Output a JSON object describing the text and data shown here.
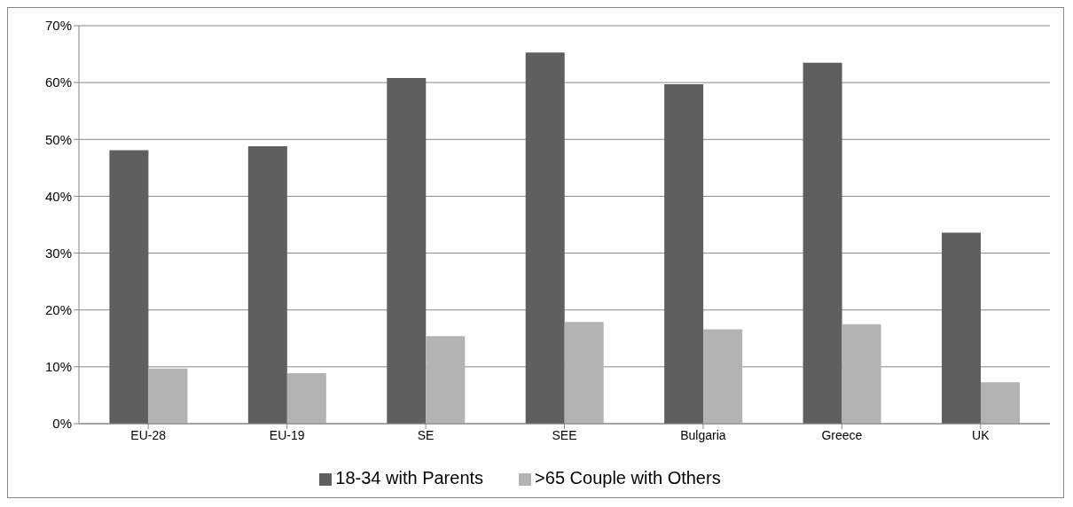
{
  "chart_data": {
    "type": "bar",
    "categories": [
      "EU-28",
      "EU-19",
      "SE",
      "SEE",
      "Bulgaria",
      "Greece",
      "UK"
    ],
    "series": [
      {
        "name": "18-34 with Parents",
        "color": "#5f5f5f",
        "values": [
          48.1,
          48.8,
          60.8,
          65.3,
          59.7,
          63.5,
          33.6
        ]
      },
      {
        "name": ">65 Couple with Others",
        "color": "#b3b3b3",
        "values": [
          9.7,
          8.9,
          15.4,
          17.9,
          16.6,
          17.5,
          7.3
        ]
      }
    ],
    "ylim": [
      0,
      70
    ],
    "yticks": [
      {
        "value": 0,
        "label": "0%"
      },
      {
        "value": 10,
        "label": "10%"
      },
      {
        "value": 20,
        "label": "20%"
      },
      {
        "value": 30,
        "label": "30%"
      },
      {
        "value": 40,
        "label": "40%"
      },
      {
        "value": 50,
        "label": "50%"
      },
      {
        "value": 60,
        "label": "60%"
      },
      {
        "value": 70,
        "label": "70%"
      }
    ],
    "grid": "y",
    "legend": "bottom"
  }
}
